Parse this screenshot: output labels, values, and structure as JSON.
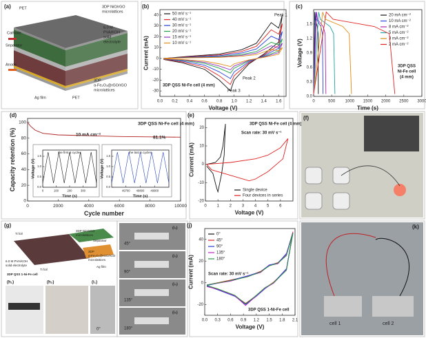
{
  "panels": {
    "a": {
      "label": "(a)",
      "texts": [
        "PET",
        "3DP NiO/rGO",
        "microlattices",
        "Cathode",
        "6.0 M",
        "PVA/KOH",
        "solid",
        "electrolyte",
        "Separator",
        "Anode",
        "3DP",
        "α-Fe₂O₃@rGO/rGO",
        "microlattices",
        "Ag film",
        "PET"
      ]
    },
    "f": {
      "label": "(f)",
      "texts": []
    },
    "g": {
      "label": "(g)",
      "texts": [
        "Ti foil",
        "3DP NiO/rGO",
        "microlattices",
        "Separator",
        "6.0 M PVA/KOH",
        "solid electrolyte",
        "3DP",
        "α-Fe₂O₃@rGO/rGO",
        "microlattices",
        "Ti foil",
        "Ag film",
        "3DP QSS 1-Ni-Fe cell"
      ]
    },
    "h": {
      "label": "(h₁)",
      "texts": [
        "(h₂)",
        "(i₁)",
        "0°"
      ]
    },
    "i": {
      "label": "(i₂)",
      "texts": [
        "45°",
        "(i₃)",
        "90°",
        "(i₄)",
        "135°",
        "(i₅)",
        "180°"
      ]
    },
    "k": {
      "label": "(k)",
      "texts": [
        "cell 1",
        "cell 2"
      ]
    }
  },
  "chart_data": [
    {
      "type": "line",
      "panel_label": "(b)",
      "xlabel": "Voltage (V)",
      "ylabel": "Current (mA)",
      "xlim": [
        0,
        1.7
      ],
      "ylim": [
        -35,
        45
      ],
      "xticks": [
        {
          "value": 0,
          "label": "0.0"
        },
        0.2,
        0.4,
        0.6,
        0.8,
        {
          "value": 1,
          "label": "1.0"
        },
        1.2,
        1.4,
        1.6
      ],
      "yticks": [
        -30,
        -20,
        -10,
        0,
        10,
        20,
        30,
        40
      ],
      "x": [
        0.05,
        0.4,
        0.8,
        1.1,
        1.3,
        1.5,
        1.6,
        1.65,
        1.6,
        1.4,
        1.2,
        1.0,
        0.95,
        0.8,
        0.6,
        0.3,
        0.05
      ],
      "series": [
        {
          "name": "50 mV s⁻¹",
          "color": "#111111",
          "values": [
            0,
            2,
            4,
            8,
            14,
            33,
            28,
            40,
            15,
            4,
            -5,
            -20,
            -30,
            -20,
            -10,
            -4,
            -1
          ]
        },
        {
          "name": "40 mV s⁻¹",
          "color": "#e02020",
          "values": [
            0,
            1.6,
            3.2,
            6.4,
            11.2,
            26.4,
            22.4,
            32,
            12,
            3.2,
            -4,
            -16,
            -24,
            -16,
            -8,
            -3.2,
            -0.8
          ]
        },
        {
          "name": "30 mV s⁻¹",
          "color": "#2040e0",
          "values": [
            0,
            1.2,
            2.5,
            5,
            8.7,
            20.5,
            17.4,
            24.8,
            9.3,
            2.5,
            -3.1,
            -12.4,
            -18.6,
            -12.4,
            -6.2,
            -2.5,
            -0.6
          ]
        },
        {
          "name": "20 mV s⁻¹",
          "color": "#20a040",
          "values": [
            0,
            0.9,
            1.8,
            3.6,
            6.3,
            14.9,
            12.6,
            18,
            6.8,
            1.8,
            -2.3,
            -9,
            -13.5,
            -9,
            -4.5,
            -1.8,
            -0.5
          ]
        },
        {
          "name": "15 mV s⁻¹",
          "color": "#9030c0",
          "values": [
            0,
            0.7,
            1.4,
            2.8,
            4.9,
            11.6,
            9.8,
            14,
            5.3,
            1.4,
            -1.8,
            -7,
            -10.5,
            -7,
            -3.5,
            -1.4,
            -0.4
          ]
        },
        {
          "name": "10 mV s⁻¹",
          "color": "#e08a10",
          "values": [
            0,
            0.5,
            1,
            2,
            3.5,
            8.3,
            7,
            10,
            3.8,
            1,
            -1.3,
            -5,
            -7.5,
            -5,
            -2.5,
            -1,
            -0.3
          ]
        }
      ],
      "annotations": [
        "Peak 1",
        "Peak 2",
        "Peak 3",
        "3DP QSS Ni-Fe cell (4 mm)"
      ]
    },
    {
      "type": "line",
      "panel_label": "(c)",
      "xlabel": "Time (s)",
      "ylabel": "Voltage (V)",
      "xlim": [
        0,
        3000
      ],
      "ylim": [
        0,
        1.8
      ],
      "xticks": [
        0,
        500,
        1000,
        1500,
        2000,
        2500,
        3000
      ],
      "yticks": [
        {
          "value": 0,
          "label": "0.0"
        },
        0.3,
        0.6,
        0.9,
        1.2,
        1.5
      ],
      "series": [
        {
          "name": "20 mA cm⁻²",
          "color": "#111111",
          "x": [
            0,
            30,
            40,
            100,
            122,
            130
          ],
          "values": [
            0.05,
            1.75,
            1.6,
            1.45,
            1.3,
            0.05
          ]
        },
        {
          "name": "10 mA cm⁻²",
          "color": "#2040e0",
          "x": [
            0,
            60,
            80,
            200,
            244,
            260
          ],
          "values": [
            0.05,
            1.75,
            1.6,
            1.45,
            1.3,
            0.05
          ]
        },
        {
          "name": "8 mA cm⁻²",
          "color": "#b020b0",
          "x": [
            0,
            80,
            106,
            262,
            319,
            340
          ],
          "values": [
            0.05,
            1.75,
            1.6,
            1.45,
            1.3,
            0.05
          ]
        },
        {
          "name": "5 mA cm⁻²",
          "color": "#20a0a0",
          "x": [
            0,
            140,
            185,
            455,
            554,
            590
          ],
          "values": [
            0.05,
            1.75,
            1.6,
            1.45,
            1.3,
            0.05
          ]
        },
        {
          "name": "3 mA cm⁻²",
          "color": "#e08a10",
          "x": [
            0,
            250,
            330,
            810,
            986,
            1050
          ],
          "values": [
            0.05,
            1.75,
            1.6,
            1.45,
            1.3,
            0.05
          ]
        },
        {
          "name": "2 mA cm⁻²",
          "color": "#e02020",
          "x": [
            0,
            350,
            540,
            1680,
            2098,
            2250
          ],
          "values": [
            0.05,
            1.75,
            1.6,
            1.45,
            1.3,
            0.05
          ]
        }
      ],
      "annotations": [
        "3DP QSS",
        "Ni-Fe cell",
        "(4 mm)"
      ]
    },
    {
      "type": "line",
      "panel_label": "(d)",
      "xlabel": "Cycle number",
      "ylabel": "Capacity retention (%)",
      "xlim": [
        0,
        10000
      ],
      "ylim": [
        0,
        105
      ],
      "xticks": [
        0,
        2000,
        4000,
        6000,
        8000,
        10000
      ],
      "yticks": [
        0,
        20,
        40,
        60,
        80,
        100
      ],
      "x": [
        0,
        200,
        500,
        1000,
        2000,
        4000,
        6000,
        8000,
        10000
      ],
      "values": [
        100,
        95,
        90,
        86,
        84,
        83,
        82,
        81.5,
        81.1
      ],
      "color": "#b02020",
      "annotations": [
        "10 mA cm⁻²",
        "81.1%",
        "3DP QSS Ni-Fe cell (4 mm)"
      ]
    },
    {
      "type": "line",
      "title": "the first 5 cycles",
      "xlabel": "Time (s)",
      "ylabel": "Voltage (V)",
      "xlim": [
        0,
        400
      ],
      "ylim": [
        0,
        1.8
      ],
      "xticks": [
        0,
        100,
        200,
        300
      ],
      "yticks": [
        {
          "value": 0,
          "label": "0.0"
        },
        0.5,
        {
          "value": 1,
          "label": "1.0"
        },
        1.5
      ],
      "x": [
        0,
        40,
        80,
        120,
        160,
        200,
        240,
        280,
        320,
        360,
        400
      ],
      "values": [
        0.2,
        1.7,
        0.2,
        1.7,
        0.2,
        1.7,
        0.2,
        1.7,
        0.2,
        1.7,
        0.2
      ],
      "color": "#111111"
    },
    {
      "type": "line",
      "title": "the last 5 cycles",
      "xlabel": "Time (s)",
      "ylabel": "Voltage (V)",
      "xlim": [
        49600,
        50000
      ],
      "ylim": [
        0,
        1.8
      ],
      "xticks": [
        49700,
        49800,
        49900
      ],
      "yticks": [
        {
          "value": 0,
          "label": "0.0"
        },
        0.5,
        {
          "value": 1,
          "label": "1.0"
        },
        1.5
      ],
      "x": [
        49600,
        49640,
        49680,
        49720,
        49760,
        49800,
        49840,
        49880,
        49920,
        49960,
        50000
      ],
      "values": [
        0.2,
        1.7,
        0.2,
        1.7,
        0.2,
        1.7,
        0.2,
        1.7,
        0.2,
        1.7,
        0.2
      ],
      "color": "#2040c0"
    },
    {
      "type": "line",
      "panel_label": "(e)",
      "xlabel": "Voltage (V)",
      "ylabel": "Current (mA)",
      "xlim": [
        0,
        7
      ],
      "ylim": [
        -20,
        25
      ],
      "xticks": [
        0,
        1,
        2,
        3,
        4,
        5,
        6
      ],
      "yticks": [
        -20,
        -10,
        0,
        10,
        20
      ],
      "series": [
        {
          "name": "Single device",
          "color": "#111111",
          "x": [
            0.1,
            0.8,
            1.2,
            1.4,
            1.6,
            1.5,
            1.3,
            1.0,
            0.9,
            0.6,
            0.1
          ],
          "values": [
            0,
            1,
            4,
            10,
            22,
            5,
            -5,
            -15,
            -13,
            -5,
            -1
          ]
        },
        {
          "name": "Four devices in series",
          "color": "#e02020",
          "x": [
            0.1,
            2,
            4,
            5,
            6,
            6.6,
            6.2,
            5,
            4,
            3.5,
            2,
            0.5,
            0.1
          ],
          "values": [
            0,
            1,
            3,
            5,
            9,
            14,
            3,
            -4,
            -8,
            -9,
            -6,
            -3,
            0
          ]
        }
      ],
      "annotations": [
        "3DP QSS Ni-Fe cell (4 mm)",
        "Scan rate: 30 mV s⁻¹"
      ]
    },
    {
      "type": "line",
      "panel_label": "(j)",
      "xlabel": "Voltage (V)",
      "ylabel": "Current (mA)",
      "xlim": [
        0,
        2.1
      ],
      "ylim": [
        -30,
        50
      ],
      "xticks": [
        {
          "value": 0,
          "label": "0.0"
        },
        0.3,
        0.6,
        0.9,
        1.2,
        1.5,
        1.8,
        2.1
      ],
      "yticks": [
        -20,
        0,
        20,
        40
      ],
      "x": [
        0.05,
        0.6,
        1.0,
        1.3,
        1.5,
        1.7,
        1.9,
        2.05,
        1.9,
        1.6,
        1.4,
        1.2,
        0.95,
        0.7,
        0.3,
        0.05
      ],
      "series": [
        {
          "name": "0°",
          "color": "#111111",
          "values": [
            -2,
            2,
            6,
            10,
            16,
            18,
            26,
            46,
            12,
            0,
            -5,
            -12,
            -20,
            -12,
            -6,
            -3
          ]
        },
        {
          "name": "45°",
          "color": "#e02020",
          "values": [
            -2,
            2.5,
            6,
            10.5,
            16,
            18.5,
            26,
            47,
            12,
            0.5,
            -5,
            -12,
            -19,
            -12,
            -6,
            -3
          ]
        },
        {
          "name": "90°",
          "color": "#2040e0",
          "values": [
            -2.5,
            2,
            6.5,
            10,
            16.5,
            18,
            27,
            46,
            13,
            0,
            -5.5,
            -12.5,
            -20,
            -12.5,
            -6.5,
            -3
          ]
        },
        {
          "name": "135°",
          "color": "#c020c0",
          "values": [
            -2,
            1.5,
            6,
            9.5,
            16,
            17.5,
            26,
            45,
            12,
            -0.5,
            -5,
            -12,
            -21,
            -12,
            -6,
            -3.5
          ]
        },
        {
          "name": "180°",
          "color": "#20a040",
          "values": [
            -2,
            2,
            5.5,
            10,
            15.5,
            18,
            25,
            45.5,
            11.5,
            0,
            -4.5,
            -11.5,
            -19.5,
            -11.5,
            -5.5,
            -2.5
          ]
        }
      ],
      "annotations": [
        "Scan rate: 30 mV s⁻¹",
        "3DP QSS 1-Ni-Fe cell"
      ]
    }
  ]
}
